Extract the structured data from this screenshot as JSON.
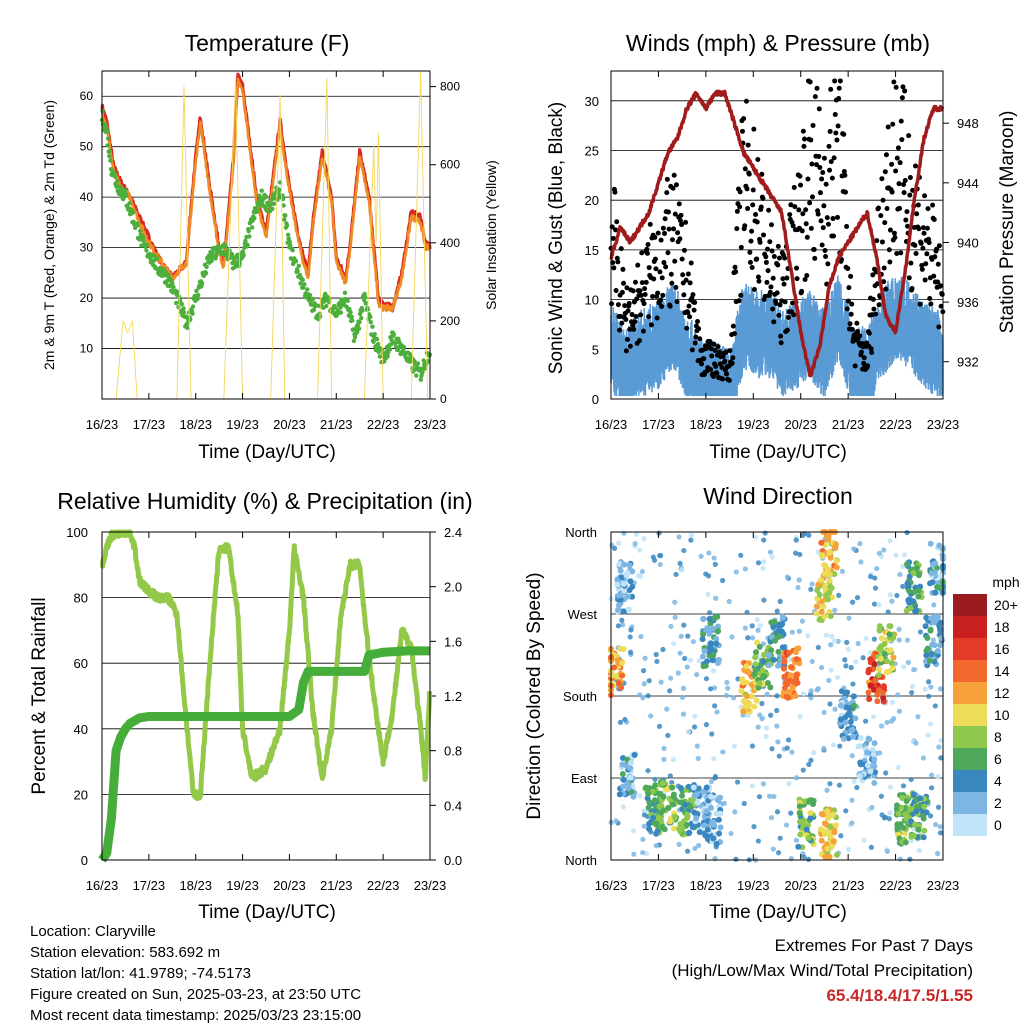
{
  "colors": {
    "t2m": "#d62a22",
    "t9m": "#f08a24",
    "td2m": "#4caf3c",
    "solar": "#f5d75a",
    "wind": "#5a9bd5",
    "gust": "#000000",
    "pressure": "#a01c1c",
    "rh": "#93c849",
    "precip": "#46ad3a",
    "extremes": "#c62828"
  },
  "station_info": {
    "location": "Location: Claryville",
    "elevation": "Station elevation: 583.692 m",
    "latlon": "Station lat/lon: 41.9789; -74.5173",
    "created": "Figure created on Sun, 2025-03-23, at 23:50 UTC",
    "latest": "Most recent data timestamp: 2025/03/23 23:15:00"
  },
  "extremes": {
    "line1": "Extremes For Past 7 Days",
    "line2": "(High/Low/Max Wind/Total Precipitation)",
    "values": "65.4/18.4/17.5/1.55"
  },
  "chart_data": [
    {
      "id": "temperature",
      "type": "line",
      "title": "Temperature (F)",
      "xlabel": "Time (Day/UTC)",
      "ylabel": "2m & 9m T (Red, Orange) & 2m Td (Green)",
      "y2label": "Solar Insolation (Yellow)",
      "x_ticks": [
        "16/23",
        "17/23",
        "18/23",
        "19/23",
        "20/23",
        "21/23",
        "22/23",
        "23/23"
      ],
      "xlim": [
        0,
        7
      ],
      "ylim": [
        0,
        65
      ],
      "y_ticks": [
        10,
        20,
        30,
        40,
        50,
        60
      ],
      "y2lim": [
        0,
        840
      ],
      "y2_ticks": [
        0,
        200,
        400,
        600,
        800
      ],
      "grid": "horizontal",
      "series": [
        {
          "key": "t2m",
          "axis": "left",
          "style": "line",
          "x": [
            0,
            0.1,
            0.2,
            0.25,
            0.4,
            0.6,
            0.8,
            1.0,
            1.2,
            1.5,
            1.8,
            1.9,
            2.0,
            2.1,
            2.3,
            2.5,
            2.6,
            2.8,
            2.9,
            3.0,
            3.3,
            3.5,
            3.6,
            3.8,
            4.0,
            4.2,
            4.3,
            4.4,
            4.5,
            4.7,
            4.9,
            5.0,
            5.2,
            5.3,
            5.5,
            5.7,
            5.9,
            6.0,
            6.2,
            6.4,
            6.5,
            6.6,
            6.8,
            6.9,
            7.0
          ],
          "y": [
            58,
            55,
            49,
            46,
            43,
            40,
            36,
            32,
            28,
            24,
            27,
            38,
            48,
            56,
            42,
            30,
            27,
            47,
            64,
            62,
            40,
            33,
            40,
            55,
            42,
            32,
            28,
            25,
            35,
            49,
            40,
            28,
            24,
            31,
            49,
            40,
            20,
            19,
            18,
            25,
            31,
            37,
            36,
            31,
            30
          ]
        },
        {
          "key": "t9m",
          "axis": "left",
          "style": "line",
          "x": [
            0,
            0.1,
            0.2,
            0.25,
            0.4,
            0.6,
            0.8,
            1.0,
            1.2,
            1.5,
            1.8,
            1.9,
            2.0,
            2.1,
            2.3,
            2.5,
            2.6,
            2.8,
            2.9,
            3.0,
            3.3,
            3.5,
            3.6,
            3.8,
            4.0,
            4.2,
            4.3,
            4.4,
            4.5,
            4.7,
            4.9,
            5.0,
            5.2,
            5.3,
            5.5,
            5.7,
            5.9,
            6.0,
            6.2,
            6.4,
            6.5,
            6.6,
            6.8,
            6.9,
            7.0
          ],
          "y": [
            57,
            54,
            48,
            45,
            42,
            40,
            35,
            31,
            28,
            24,
            27,
            37,
            47,
            55,
            41,
            29,
            26,
            46,
            63,
            61,
            39,
            32,
            39,
            54,
            41,
            31,
            27,
            24,
            34,
            48,
            39,
            27,
            23,
            30,
            48,
            39,
            19,
            18,
            18,
            24,
            30,
            36,
            35,
            30,
            30
          ]
        },
        {
          "key": "td2m",
          "axis": "left",
          "style": "dots",
          "x": [
            0,
            0.1,
            0.2,
            0.3,
            0.5,
            0.7,
            0.9,
            1.0,
            1.2,
            1.4,
            1.6,
            1.8,
            2.0,
            2.3,
            2.6,
            2.8,
            3.0,
            3.2,
            3.4,
            3.6,
            3.8,
            4.0,
            4.2,
            4.4,
            4.6,
            4.8,
            5.0,
            5.2,
            5.4,
            5.6,
            5.8,
            6.0,
            6.2,
            6.4,
            6.6,
            6.8,
            7.0
          ],
          "y": [
            56,
            53,
            46,
            43,
            40,
            35,
            30,
            29,
            26,
            24,
            20,
            15,
            20,
            28,
            30,
            27,
            28,
            35,
            40,
            38,
            42,
            30,
            25,
            20,
            17,
            20,
            17,
            20,
            12,
            20,
            12,
            8,
            12,
            10,
            7,
            5,
            10
          ]
        },
        {
          "key": "solar",
          "axis": "right",
          "style": "line",
          "x": [
            0,
            0.3,
            0.45,
            0.55,
            0.65,
            0.75,
            0.9,
            1.3,
            1.6,
            1.75,
            1.9,
            2.1,
            2.3,
            2.6,
            2.85,
            3.0,
            3.3,
            3.6,
            3.8,
            3.9,
            4.0,
            4.3,
            4.6,
            4.8,
            4.9,
            5.0,
            5.3,
            5.6,
            5.8,
            5.85,
            5.9,
            6.0,
            6.3,
            6.6,
            6.8,
            6.95,
            7.0
          ],
          "y": [
            0,
            0,
            200,
            170,
            200,
            0,
            0,
            0,
            0,
            800,
            0,
            0,
            0,
            0,
            820,
            0,
            0,
            0,
            780,
            0,
            0,
            0,
            0,
            820,
            0,
            0,
            0,
            0,
            650,
            400,
            680,
            0,
            0,
            0,
            840,
            0,
            0
          ]
        }
      ]
    },
    {
      "id": "winds",
      "type": "scatter",
      "title": "Winds (mph) & Pressure (mb)",
      "xlabel": "Time (Day/UTC)",
      "ylabel": "Sonic Wind & Gust (Blue, Black)",
      "y2label": "Station Pressure (Maroon)",
      "x_ticks": [
        "16/23",
        "17/23",
        "18/23",
        "19/23",
        "20/23",
        "21/23",
        "22/23",
        "23/23"
      ],
      "xlim": [
        0,
        7
      ],
      "ylim": [
        0,
        33
      ],
      "y_ticks": [
        0,
        5,
        10,
        15,
        20,
        25,
        30
      ],
      "y2lim": [
        929.5,
        951.5
      ],
      "y2_ticks": [
        932,
        936,
        940,
        944,
        948
      ],
      "grid": "horizontal",
      "series": [
        {
          "key": "wind",
          "name": "Sonic Wind",
          "axis": "left",
          "style": "band",
          "x": [
            0,
            0.3,
            0.6,
            1.0,
            1.3,
            1.6,
            1.9,
            2.2,
            2.5,
            2.8,
            3.1,
            3.4,
            3.6,
            3.9,
            4.2,
            4.5,
            4.8,
            5.1,
            5.4,
            5.7,
            6.0,
            6.3,
            6.6,
            6.9,
            7.0
          ],
          "y": [
            6,
            3,
            5,
            6,
            8,
            5,
            2,
            2,
            1,
            8,
            7,
            7,
            5,
            6,
            7,
            5,
            9,
            4,
            3,
            7,
            9,
            8,
            6,
            5,
            4
          ]
        },
        {
          "key": "gust",
          "name": "Gust",
          "axis": "left",
          "style": "dots",
          "x": [
            0,
            0.3,
            0.6,
            1.0,
            1.3,
            1.6,
            1.9,
            2.2,
            2.5,
            2.8,
            3.1,
            3.4,
            3.6,
            3.9,
            4.2,
            4.5,
            4.8,
            5.1,
            5.4,
            5.7,
            6.0,
            6.3,
            6.6,
            6.9,
            7.0
          ],
          "y": [
            17,
            8,
            10,
            14,
            16,
            12,
            4,
            4,
            3,
            22,
            18,
            12,
            10,
            16,
            24,
            20,
            26,
            6,
            4,
            18,
            24,
            20,
            16,
            12,
            8
          ]
        },
        {
          "key": "pressure",
          "name": "Station Pressure",
          "axis": "right",
          "style": "line",
          "x": [
            0,
            0.2,
            0.4,
            0.6,
            0.8,
            1.0,
            1.2,
            1.4,
            1.6,
            1.8,
            2.0,
            2.2,
            2.4,
            2.6,
            2.8,
            3.0,
            3.2,
            3.4,
            3.6,
            3.8,
            4.0,
            4.2,
            4.4,
            4.6,
            4.8,
            5.0,
            5.2,
            5.4,
            5.6,
            5.8,
            6.0,
            6.2,
            6.4,
            6.6,
            6.8,
            7.0
          ],
          "y": [
            939,
            941,
            940,
            941,
            942,
            944,
            946,
            947,
            949,
            950,
            949,
            950,
            950,
            948,
            946,
            945,
            944,
            943,
            942,
            938,
            934,
            931,
            933,
            937,
            939,
            940,
            941,
            942,
            939,
            935,
            934,
            938,
            943,
            947,
            949,
            949
          ]
        }
      ]
    },
    {
      "id": "rh",
      "type": "line",
      "title": "Relative Humidity (%) & Precipitation (in)",
      "xlabel": "Time (Day/UTC)",
      "ylabel": "Percent & Total Rainfall",
      "x_ticks": [
        "16/23",
        "17/23",
        "18/23",
        "19/23",
        "20/23",
        "21/23",
        "22/23",
        "23/23"
      ],
      "xlim": [
        0,
        7
      ],
      "ylim": [
        0,
        100
      ],
      "y_ticks": [
        0,
        20,
        40,
        60,
        80,
        100
      ],
      "y2lim": [
        0,
        2.4
      ],
      "y2_ticks": [
        "0.0",
        "0.4",
        "0.8",
        "1.2",
        "1.6",
        "2.0",
        "2.4"
      ],
      "grid": "horizontal",
      "series": [
        {
          "key": "rh",
          "axis": "left",
          "style": "line",
          "x": [
            0,
            0.1,
            0.2,
            0.4,
            0.6,
            0.7,
            0.8,
            1.0,
            1.2,
            1.4,
            1.5,
            1.6,
            1.75,
            1.85,
            1.95,
            2.1,
            2.3,
            2.5,
            2.7,
            2.9,
            3.0,
            3.2,
            3.5,
            3.8,
            4.0,
            4.1,
            4.3,
            4.5,
            4.7,
            4.9,
            5.1,
            5.3,
            5.5,
            5.6,
            5.8,
            6.0,
            6.2,
            6.4,
            6.6,
            6.8,
            6.9,
            7.0
          ],
          "y": [
            90,
            95,
            99,
            100,
            100,
            95,
            85,
            82,
            80,
            80,
            78,
            75,
            50,
            35,
            20,
            20,
            60,
            95,
            95,
            75,
            40,
            25,
            28,
            40,
            70,
            95,
            80,
            45,
            25,
            40,
            75,
            90,
            90,
            75,
            50,
            30,
            45,
            70,
            65,
            40,
            25,
            53
          ]
        },
        {
          "key": "precip",
          "axis": "right",
          "style": "step",
          "x": [
            0,
            0.1,
            0.2,
            0.3,
            0.4,
            0.5,
            0.6,
            0.8,
            1.0,
            1.5,
            2.0,
            3.0,
            4.0,
            4.2,
            4.3,
            4.4,
            5.0,
            5.6,
            5.7,
            6.0,
            6.5,
            7.0
          ],
          "y": [
            0,
            0.05,
            0.3,
            0.8,
            0.9,
            0.96,
            1.0,
            1.04,
            1.05,
            1.05,
            1.05,
            1.05,
            1.05,
            1.1,
            1.3,
            1.38,
            1.38,
            1.38,
            1.5,
            1.52,
            1.53,
            1.53
          ]
        }
      ]
    },
    {
      "id": "direction",
      "type": "scatter",
      "title": "Wind Direction",
      "xlabel": "Time (Day/UTC)",
      "ylabel": "Direction (Colored By Speed)",
      "x_ticks": [
        "16/23",
        "17/23",
        "18/23",
        "19/23",
        "20/23",
        "21/23",
        "22/23",
        "23/23"
      ],
      "xlim": [
        0,
        7
      ],
      "ylim": [
        0,
        360
      ],
      "y_ticks": [
        "North",
        "East",
        "South",
        "West",
        "North"
      ],
      "grid": "horizontal",
      "legend_title": "mph",
      "legend_labels": [
        "20+",
        "18",
        "16",
        "14",
        "12",
        "10",
        "8",
        "6",
        "4",
        "2",
        "0"
      ],
      "legend_colors": [
        "#9b1b1e",
        "#c8201f",
        "#e33b2a",
        "#f2682d",
        "#f7a13b",
        "#eddc58",
        "#8ec94e",
        "#4da85c",
        "#3a87c0",
        "#7db6e2",
        "#bfe3f7"
      ],
      "clusters": [
        {
          "x": 0.35,
          "y": 95,
          "s": 3
        },
        {
          "x": 0.1,
          "y": 205,
          "s": 12
        },
        {
          "x": 0.3,
          "y": 300,
          "s": 2
        },
        {
          "x": 0.9,
          "y": 55,
          "s": 6
        },
        {
          "x": 1.2,
          "y": 60,
          "s": 8
        },
        {
          "x": 1.6,
          "y": 55,
          "s": 6
        },
        {
          "x": 1.9,
          "y": 55,
          "s": 2
        },
        {
          "x": 2.15,
          "y": 45,
          "s": 2
        },
        {
          "x": 2.1,
          "y": 240,
          "s": 4
        },
        {
          "x": 2.9,
          "y": 190,
          "s": 11
        },
        {
          "x": 3.2,
          "y": 215,
          "s": 7
        },
        {
          "x": 3.5,
          "y": 240,
          "s": 4
        },
        {
          "x": 3.8,
          "y": 205,
          "s": 13
        },
        {
          "x": 4.1,
          "y": 40,
          "s": 7
        },
        {
          "x": 4.6,
          "y": 30,
          "s": 10
        },
        {
          "x": 4.5,
          "y": 290,
          "s": 10
        },
        {
          "x": 4.6,
          "y": 340,
          "s": 11
        },
        {
          "x": 5.0,
          "y": 160,
          "s": 3
        },
        {
          "x": 5.4,
          "y": 110,
          "s": 2
        },
        {
          "x": 5.6,
          "y": 200,
          "s": 15
        },
        {
          "x": 5.8,
          "y": 230,
          "s": 9
        },
        {
          "x": 6.2,
          "y": 45,
          "s": 7
        },
        {
          "x": 6.5,
          "y": 50,
          "s": 6
        },
        {
          "x": 6.8,
          "y": 240,
          "s": 4
        },
        {
          "x": 6.4,
          "y": 300,
          "s": 6
        },
        {
          "x": 6.9,
          "y": 320,
          "s": 3
        }
      ]
    }
  ]
}
